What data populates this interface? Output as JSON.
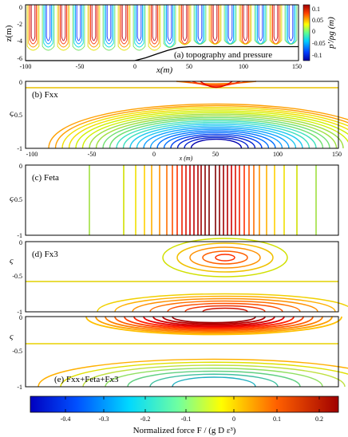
{
  "panels": {
    "a": {
      "label": "(a) topography and pressure",
      "ylabel": "z(m)",
      "xlabel": "x(m)",
      "yticks": [
        "0",
        "-2",
        "-4",
        "-6"
      ],
      "xticks": [
        "-100",
        "-50",
        "0",
        "50",
        "100",
        "150"
      ],
      "cbar_label": "p'/ρg (m)",
      "cbar_ticks": [
        "0.1",
        "0.05",
        "0",
        "-0.05",
        "-0.1"
      ]
    },
    "b": {
      "label": "(b) Fxx",
      "ylabel": "ς",
      "yticks": [
        "0",
        "-0.5",
        "-1"
      ],
      "xticks": [
        "-100",
        "-50",
        "0",
        "50",
        "100",
        "150"
      ],
      "xlabel": "x (m)"
    },
    "c": {
      "label": "(c) Feta",
      "ylabel": "ς",
      "yticks": [
        "0",
        "-0.5",
        "-1"
      ]
    },
    "d": {
      "label": "(d) Fx3",
      "ylabel": "ς",
      "yticks": [
        "0",
        "-0.5",
        "-1"
      ]
    },
    "e": {
      "label": "(e) Fxx+Feta+Fx3",
      "ylabel": "ς",
      "yticks": [
        "0",
        "-0.5",
        "-1"
      ]
    }
  },
  "colorbar": {
    "ticks": [
      "-0.4",
      "-0.3",
      "-0.2",
      "-0.1",
      "0",
      "0.1",
      "0.2"
    ],
    "label": "Normalized force F / (g D ε³)",
    "range": [
      -0.48,
      0.26
    ]
  },
  "chart_data": {
    "type": "contour",
    "x_range": [
      -100,
      150
    ],
    "sigma_range": [
      -1,
      0
    ],
    "z_range": [
      -6,
      0
    ],
    "topography": {
      "x": [
        -100,
        0,
        10,
        20,
        30,
        40,
        50,
        150
      ],
      "z": [
        -6,
        -6,
        -5.7,
        -5.3,
        -4.9,
        -4.6,
        -4.5,
        -4.5
      ]
    },
    "colors": [
      "#0000c8",
      "#0050ff",
      "#00b4ff",
      "#40e0d0",
      "#90e040",
      "#f0f000",
      "#ffa000",
      "#ff3000",
      "#c00000"
    ]
  }
}
